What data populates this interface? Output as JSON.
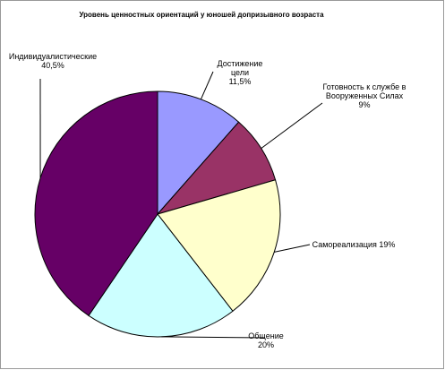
{
  "chart_data": {
    "type": "pie",
    "title": "Уровень ценностных ориентаций у юношей допризывного возраста",
    "categories": [
      "Достижение цели",
      "Готовность к службе в Вооруженных Силах",
      "Самореализация",
      "Общение",
      "Индивидуалистические"
    ],
    "values": [
      11.5,
      9,
      19,
      20,
      40.5
    ],
    "value_labels": [
      "11,5%",
      "9%",
      "19%",
      "20%",
      "40,5%"
    ],
    "colors": [
      "#9999ff",
      "#993366",
      "#ffffcc",
      "#ccffff",
      "#660066"
    ]
  }
}
